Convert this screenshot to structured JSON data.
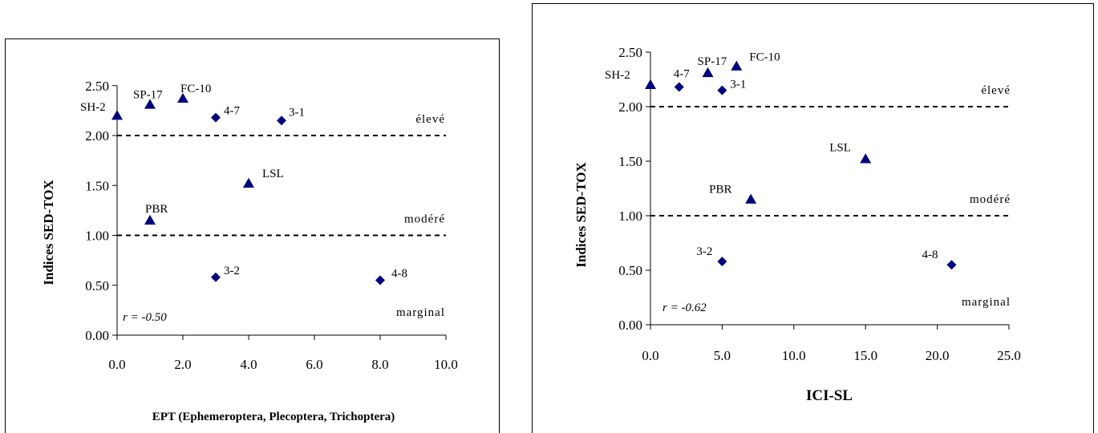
{
  "chart_data": [
    {
      "type": "scatter",
      "xlabel": "EPT (Ephemeroptera, Plecoptera, Trichoptera)",
      "ylabel": "Indices SED-TOX",
      "xlim": [
        0,
        10
      ],
      "ylim": [
        0,
        2.5
      ],
      "x_ticks": [
        "0.0",
        "2.0",
        "4.0",
        "6.0",
        "8.0",
        "10.0"
      ],
      "y_ticks": [
        "0.00",
        "0.50",
        "1.00",
        "1.50",
        "2.00",
        "2.50"
      ],
      "grid": false,
      "thresholds": [
        {
          "y": 2.0,
          "label": "élevé"
        },
        {
          "y": 1.0,
          "label": "modéré"
        },
        {
          "y": 0.0,
          "label": "marginal"
        }
      ],
      "annotation": "r = -0.50",
      "points": [
        {
          "label": "SH-2",
          "x": 0,
          "y": 2.2,
          "marker": "triangle"
        },
        {
          "label": "SP-17",
          "x": 1,
          "y": 2.31,
          "marker": "triangle"
        },
        {
          "label": "FC-10",
          "x": 2,
          "y": 2.37,
          "marker": "triangle"
        },
        {
          "label": "4-7",
          "x": 3,
          "y": 2.18,
          "marker": "diamond"
        },
        {
          "label": "3-1",
          "x": 5,
          "y": 2.15,
          "marker": "diamond"
        },
        {
          "label": "LSL",
          "x": 4,
          "y": 1.52,
          "marker": "triangle"
        },
        {
          "label": "PBR",
          "x": 1,
          "y": 1.15,
          "marker": "triangle"
        },
        {
          "label": "3-2",
          "x": 3,
          "y": 0.58,
          "marker": "diamond"
        },
        {
          "label": "4-8",
          "x": 8,
          "y": 0.55,
          "marker": "diamond"
        }
      ]
    },
    {
      "type": "scatter",
      "xlabel": "ICI-SL",
      "ylabel": "Indices SED-TOX",
      "xlim": [
        0,
        25
      ],
      "ylim": [
        0,
        2.5
      ],
      "x_ticks": [
        "0.0",
        "5.0",
        "10.0",
        "15.0",
        "20.0",
        "25.0"
      ],
      "y_ticks": [
        "0.00",
        "0.50",
        "1.00",
        "1.50",
        "2.00",
        "2.50"
      ],
      "grid": false,
      "thresholds": [
        {
          "y": 2.0,
          "label": "élevé"
        },
        {
          "y": 1.0,
          "label": "modéré"
        },
        {
          "y": 0.0,
          "label": "marginal"
        }
      ],
      "annotation": "r = -0.62",
      "points": [
        {
          "label": "SH-2",
          "x": 0,
          "y": 2.2,
          "marker": "triangle"
        },
        {
          "label": "4-7",
          "x": 2,
          "y": 2.18,
          "marker": "diamond"
        },
        {
          "label": "SP-17",
          "x": 4,
          "y": 2.31,
          "marker": "triangle"
        },
        {
          "label": "3-1",
          "x": 5,
          "y": 2.15,
          "marker": "diamond"
        },
        {
          "label": "FC-10",
          "x": 6,
          "y": 2.37,
          "marker": "triangle"
        },
        {
          "label": "LSL",
          "x": 15,
          "y": 1.52,
          "marker": "triangle"
        },
        {
          "label": "PBR",
          "x": 7,
          "y": 1.15,
          "marker": "triangle"
        },
        {
          "label": "3-2",
          "x": 5,
          "y": 0.58,
          "marker": "diamond"
        },
        {
          "label": "4-8",
          "x": 21,
          "y": 0.55,
          "marker": "diamond"
        }
      ]
    }
  ]
}
